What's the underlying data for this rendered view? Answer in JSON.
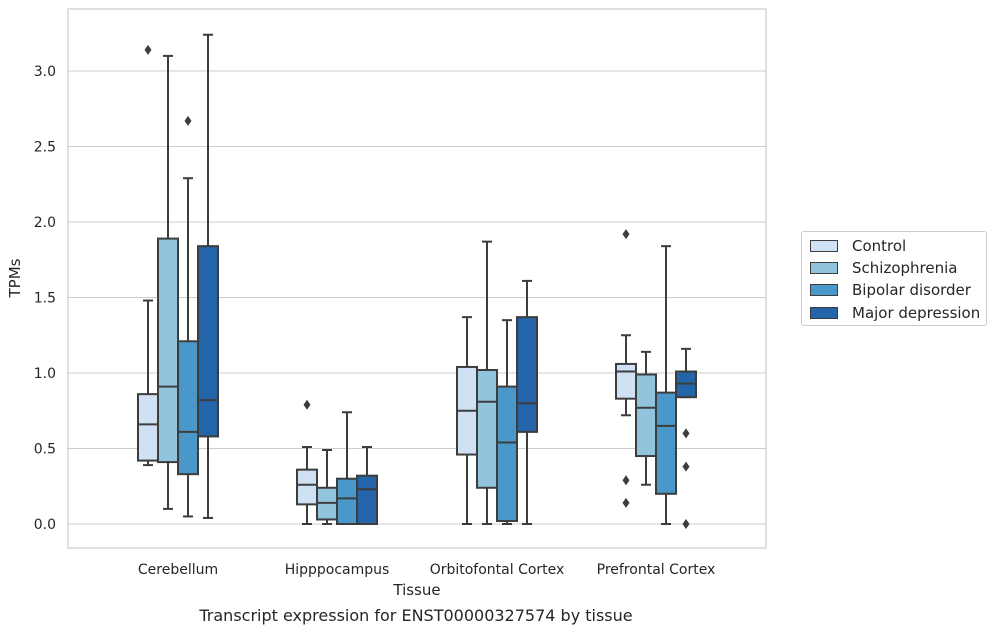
{
  "caption": "Transcript expression for ENST00000327574 by tissue",
  "colors": {
    "Control": "#cfe1f2",
    "Schizophrenia": "#93c4de",
    "Bipolar disorder": "#4a98c9",
    "Major depression": "#2464a8",
    "edge": "#3d3d3d",
    "grid": "#cccccc"
  },
  "chart_data": {
    "type": "box",
    "xlabel": "Tissue",
    "ylabel": "TPMs",
    "ylim": [
      -0.16,
      3.42
    ],
    "yticks": [
      "0.0",
      "0.5",
      "1.0",
      "1.5",
      "2.0",
      "2.5",
      "3.0"
    ],
    "grid": true,
    "legend_position": "right",
    "categories": [
      "Cerebellum",
      "Hipppocampus",
      "Orbitofontal Cortex",
      "Prefrontal Cortex"
    ],
    "series": [
      {
        "name": "Control",
        "boxes": [
          {
            "whisker_low": 0.39,
            "q1": 0.42,
            "median": 0.66,
            "q3": 0.86,
            "whisker_high": 1.48,
            "outliers": [
              3.14
            ]
          },
          {
            "whisker_low": 0.0,
            "q1": 0.13,
            "median": 0.26,
            "q3": 0.36,
            "whisker_high": 0.51,
            "outliers": [
              0.79
            ]
          },
          {
            "whisker_low": 0.0,
            "q1": 0.46,
            "median": 0.75,
            "q3": 1.04,
            "whisker_high": 1.37,
            "outliers": []
          },
          {
            "whisker_low": 0.72,
            "q1": 0.83,
            "median": 1.01,
            "q3": 1.06,
            "whisker_high": 1.25,
            "outliers": [
              1.92,
              0.29,
              0.14
            ]
          }
        ]
      },
      {
        "name": "Schizophrenia",
        "boxes": [
          {
            "whisker_low": 0.1,
            "q1": 0.41,
            "median": 0.91,
            "q3": 1.89,
            "whisker_high": 3.1,
            "outliers": []
          },
          {
            "whisker_low": 0.0,
            "q1": 0.03,
            "median": 0.14,
            "q3": 0.24,
            "whisker_high": 0.49,
            "outliers": []
          },
          {
            "whisker_low": 0.0,
            "q1": 0.24,
            "median": 0.81,
            "q3": 1.02,
            "whisker_high": 1.87,
            "outliers": []
          },
          {
            "whisker_low": 0.26,
            "q1": 0.45,
            "median": 0.77,
            "q3": 0.99,
            "whisker_high": 1.14,
            "outliers": []
          }
        ]
      },
      {
        "name": "Bipolar disorder",
        "boxes": [
          {
            "whisker_low": 0.05,
            "q1": 0.33,
            "median": 0.61,
            "q3": 1.21,
            "whisker_high": 2.29,
            "outliers": [
              2.67
            ]
          },
          {
            "whisker_low": 0.0,
            "q1": 0.0,
            "median": 0.17,
            "q3": 0.3,
            "whisker_high": 0.74,
            "outliers": []
          },
          {
            "whisker_low": 0.0,
            "q1": 0.02,
            "median": 0.54,
            "q3": 0.91,
            "whisker_high": 1.35,
            "outliers": []
          },
          {
            "whisker_low": 0.0,
            "q1": 0.2,
            "median": 0.65,
            "q3": 0.87,
            "whisker_high": 1.84,
            "outliers": []
          }
        ]
      },
      {
        "name": "Major depression",
        "boxes": [
          {
            "whisker_low": 0.04,
            "q1": 0.58,
            "median": 0.82,
            "q3": 1.84,
            "whisker_high": 3.24,
            "outliers": []
          },
          {
            "whisker_low": 0.0,
            "q1": 0.0,
            "median": 0.23,
            "q3": 0.32,
            "whisker_high": 0.51,
            "outliers": []
          },
          {
            "whisker_low": 0.0,
            "q1": 0.61,
            "median": 0.8,
            "q3": 1.37,
            "whisker_high": 1.61,
            "outliers": []
          },
          {
            "whisker_low": 0.84,
            "q1": 0.84,
            "median": 0.93,
            "q3": 1.01,
            "whisker_high": 1.16,
            "outliers": [
              0.6,
              0.38,
              0.0
            ]
          }
        ]
      }
    ]
  }
}
